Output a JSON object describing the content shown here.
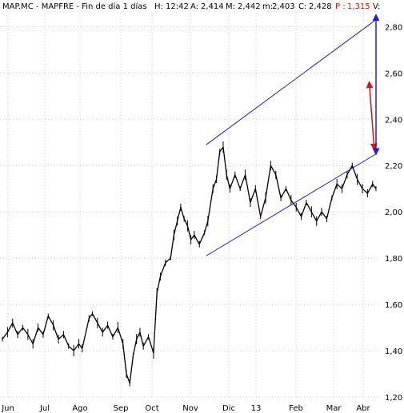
{
  "header": {
    "title": "MAP.MC - MAPFRE - Fin de día 1 días",
    "h_label": "H:",
    "h_value": "12:42",
    "a_label": "A:",
    "a_value": "2,414",
    "m_label": "M:",
    "m_value": "2,442",
    "mn_label": "m:",
    "mn_value": "2,403",
    "c_label": "C:",
    "c_value": "2,428",
    "p_label": "P :",
    "p_value": "1,315",
    "v_label": "V:"
  },
  "colors": {
    "price": "#000000",
    "grid": "#c8c8c8",
    "channel": "#1a1acc",
    "red_arrow": "#e01010",
    "blue_arrow": "#2020d0",
    "highlight": "#e01010"
  },
  "chart_data": {
    "type": "line",
    "title": "MAP.MC - MAPFRE - Fin de día 1 días",
    "x_tick_labels": [
      "Jun",
      "Jul",
      "Ago",
      "Sep",
      "Oct",
      "Nov",
      "Dic",
      "13",
      "Feb",
      "Mar",
      "Abr"
    ],
    "y_tick_labels": [
      "1,20",
      "1,40",
      "1,60",
      "1,80",
      "2,00",
      "2,20",
      "2,40",
      "2,60",
      "2,80"
    ],
    "ylim": [
      1.2,
      2.86
    ],
    "grid": true,
    "x_range": [
      0,
      22
    ],
    "series": [
      {
        "values": [
          [
            0.0,
            1.45
          ],
          [
            0.3,
            1.48
          ],
          [
            0.6,
            1.52
          ],
          [
            0.9,
            1.47
          ],
          [
            1.2,
            1.5
          ],
          [
            1.5,
            1.47
          ],
          [
            1.8,
            1.43
          ],
          [
            2.1,
            1.5
          ],
          [
            2.4,
            1.47
          ],
          [
            2.7,
            1.55
          ],
          [
            3.0,
            1.51
          ],
          [
            3.3,
            1.45
          ],
          [
            3.6,
            1.47
          ],
          [
            3.9,
            1.42
          ],
          [
            4.2,
            1.4
          ],
          [
            4.5,
            1.43
          ],
          [
            4.7,
            1.41
          ],
          [
            5.1,
            1.54
          ],
          [
            5.3,
            1.56
          ],
          [
            5.6,
            1.52
          ],
          [
            5.9,
            1.48
          ],
          [
            6.2,
            1.51
          ],
          [
            6.5,
            1.46
          ],
          [
            6.8,
            1.5
          ],
          [
            7.1,
            1.43
          ],
          [
            7.3,
            1.3
          ],
          [
            7.5,
            1.26
          ],
          [
            7.7,
            1.38
          ],
          [
            7.9,
            1.45
          ],
          [
            8.1,
            1.48
          ],
          [
            8.3,
            1.42
          ],
          [
            8.6,
            1.46
          ],
          [
            8.9,
            1.39
          ],
          [
            9.1,
            1.65
          ],
          [
            9.3,
            1.72
          ],
          [
            9.6,
            1.78
          ],
          [
            9.9,
            1.8
          ],
          [
            10.1,
            1.9
          ],
          [
            10.3,
            1.96
          ],
          [
            10.5,
            2.02
          ],
          [
            10.7,
            1.97
          ],
          [
            10.9,
            1.94
          ],
          [
            11.1,
            1.88
          ],
          [
            11.3,
            1.9
          ],
          [
            11.6,
            1.86
          ],
          [
            11.9,
            1.91
          ],
          [
            12.1,
            1.96
          ],
          [
            12.4,
            2.1
          ],
          [
            12.6,
            2.14
          ],
          [
            12.8,
            2.26
          ],
          [
            13.0,
            2.28
          ],
          [
            13.2,
            2.16
          ],
          [
            13.4,
            2.1
          ],
          [
            13.7,
            2.16
          ],
          [
            14.0,
            2.1
          ],
          [
            14.3,
            2.16
          ],
          [
            14.6,
            2.04
          ],
          [
            14.9,
            2.1
          ],
          [
            15.2,
            1.98
          ],
          [
            15.5,
            2.06
          ],
          [
            15.8,
            2.2
          ],
          [
            16.1,
            2.16
          ],
          [
            16.4,
            2.06
          ],
          [
            16.7,
            2.1
          ],
          [
            17.0,
            2.05
          ],
          [
            17.3,
            2.02
          ],
          [
            17.6,
            1.98
          ],
          [
            17.9,
            2.04
          ],
          [
            18.2,
            2.0
          ],
          [
            18.5,
            1.96
          ],
          [
            18.8,
            2.0
          ],
          [
            19.1,
            1.97
          ],
          [
            19.4,
            2.06
          ],
          [
            19.7,
            2.12
          ],
          [
            20.0,
            2.1
          ],
          [
            20.3,
            2.16
          ],
          [
            20.6,
            2.2
          ],
          [
            20.9,
            2.14
          ],
          [
            21.2,
            2.1
          ],
          [
            21.5,
            2.08
          ],
          [
            21.8,
            2.12
          ],
          [
            22.0,
            2.1
          ]
        ]
      }
    ],
    "annotations": [
      {
        "type": "channel-line",
        "from": [
          12.0,
          1.81
        ],
        "to": [
          22.0,
          2.25
        ]
      },
      {
        "type": "channel-line",
        "from": [
          12.0,
          2.29
        ],
        "to": [
          22.0,
          2.83
        ]
      },
      {
        "type": "arrow",
        "color": "red",
        "from": [
          21.6,
          2.56
        ],
        "to": [
          21.9,
          2.27
        ]
      },
      {
        "type": "arrow",
        "color": "blue",
        "from": [
          22.0,
          2.25
        ],
        "to": [
          22.0,
          2.85
        ]
      }
    ]
  }
}
